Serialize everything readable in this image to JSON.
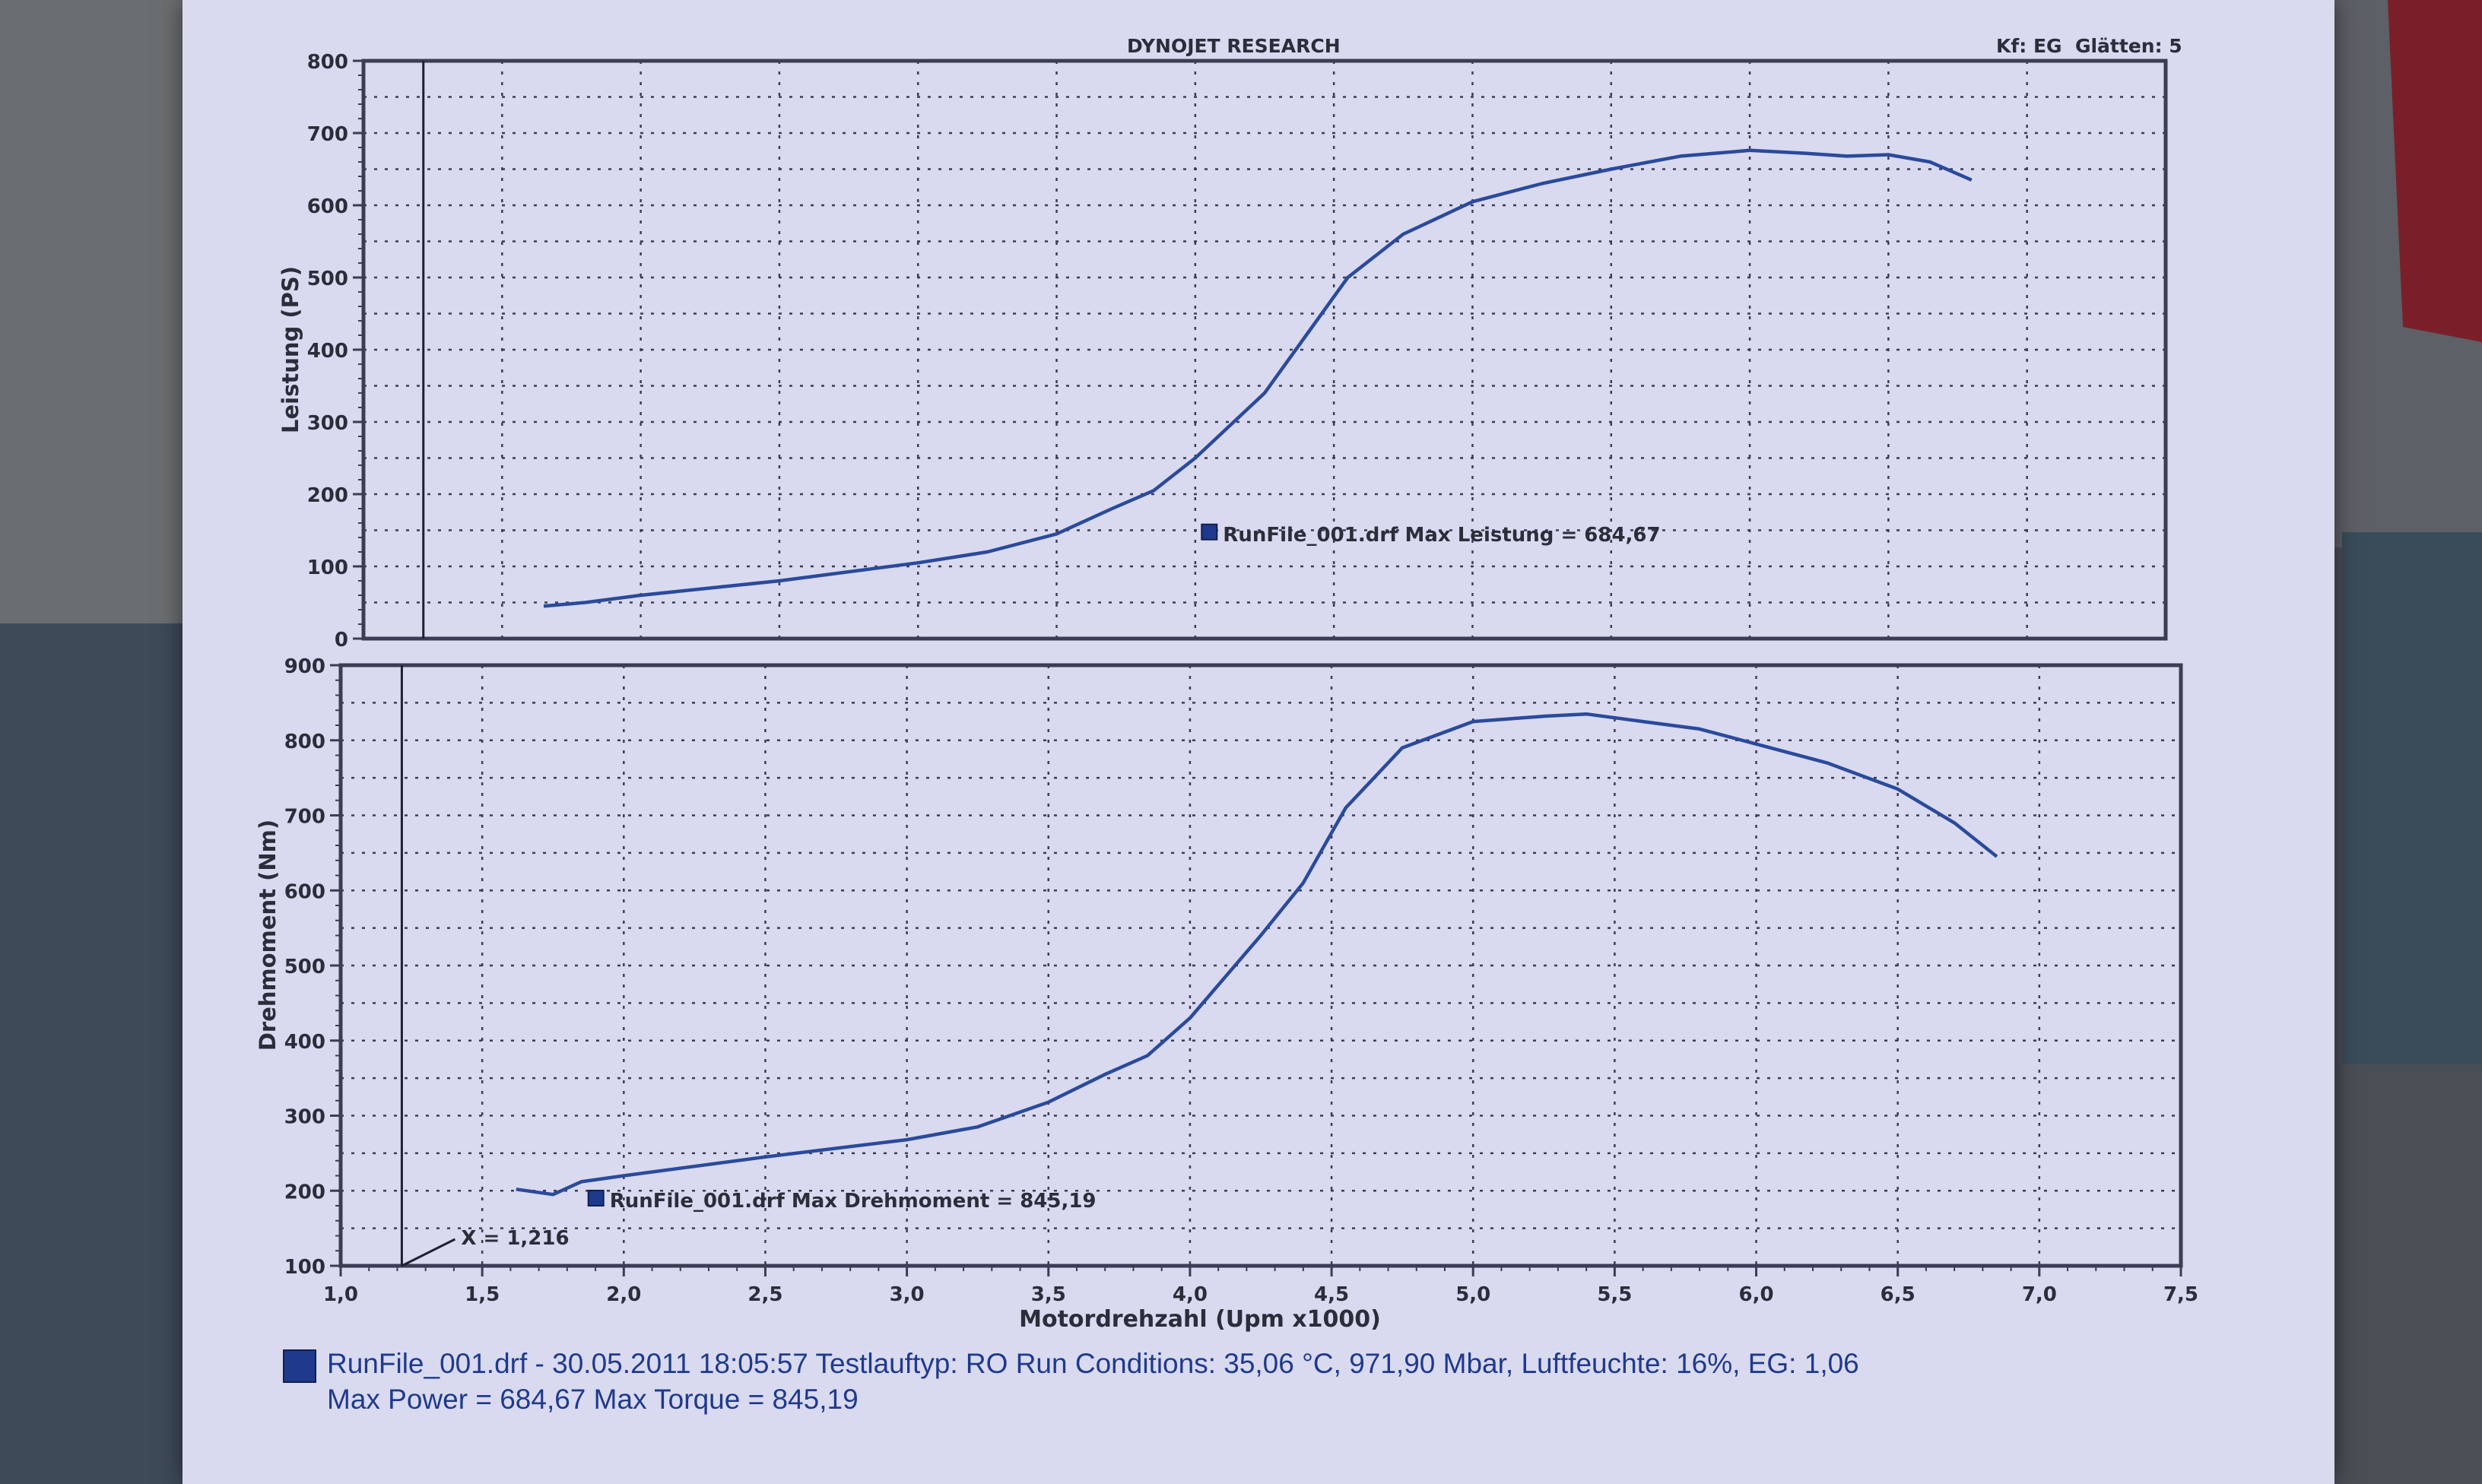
{
  "header": {
    "title": "DYNOJET RESEARCH",
    "right": "Kf: EG  Glätten: 5"
  },
  "colors": {
    "curve": "#2b4a9c",
    "grid": "#3a3d55",
    "text": "#2b2d3a",
    "legend": "#1f3a8c"
  },
  "chart_data": [
    {
      "type": "line",
      "ylabel": "Leistung (PS)",
      "ylim": [
        0,
        800
      ],
      "yticks": [
        "0",
        "100",
        "200",
        "300",
        "400",
        "500",
        "600",
        "700",
        "800"
      ],
      "xlim": [
        1.0,
        7.5
      ],
      "grid": true,
      "series": [
        {
          "label": "RunFile_001.drf Max Leistung = 684,67",
          "points": [
            [
              1.65,
              45
            ],
            [
              1.8,
              50
            ],
            [
              2.0,
              60
            ],
            [
              2.5,
              80
            ],
            [
              3.0,
              105
            ],
            [
              3.25,
              120
            ],
            [
              3.5,
              145
            ],
            [
              3.7,
              180
            ],
            [
              3.85,
              205
            ],
            [
              4.0,
              250
            ],
            [
              4.25,
              340
            ],
            [
              4.4,
              420
            ],
            [
              4.55,
              500
            ],
            [
              4.75,
              560
            ],
            [
              5.0,
              605
            ],
            [
              5.25,
              630
            ],
            [
              5.5,
              650
            ],
            [
              5.75,
              668
            ],
            [
              6.0,
              676
            ],
            [
              6.2,
              672
            ],
            [
              6.35,
              668
            ],
            [
              6.5,
              670
            ],
            [
              6.65,
              660
            ],
            [
              6.8,
              635
            ]
          ]
        }
      ],
      "cursor_x": 1.216
    },
    {
      "type": "line",
      "ylabel": "Drehmoment (Nm)",
      "ylim": [
        100,
        900
      ],
      "yticks": [
        "100",
        "200",
        "300",
        "400",
        "500",
        "600",
        "700",
        "800",
        "900"
      ],
      "xlim": [
        1.0,
        7.5
      ],
      "xlabel": "Motordrehzahl (Upm x1000)",
      "xticks": [
        "1,0",
        "1,5",
        "2,0",
        "2,5",
        "3,0",
        "3,5",
        "4,0",
        "4,5",
        "5,0",
        "5,5",
        "6,0",
        "6,5",
        "7,0",
        "7,5"
      ],
      "grid": true,
      "series": [
        {
          "label": "RunFile_001.drf Max Drehmoment = 845,19",
          "points": [
            [
              1.62,
              202
            ],
            [
              1.75,
              195
            ],
            [
              1.85,
              212
            ],
            [
              2.0,
              220
            ],
            [
              2.5,
              245
            ],
            [
              3.0,
              268
            ],
            [
              3.25,
              285
            ],
            [
              3.5,
              318
            ],
            [
              3.7,
              355
            ],
            [
              3.85,
              380
            ],
            [
              4.0,
              430
            ],
            [
              4.25,
              540
            ],
            [
              4.4,
              610
            ],
            [
              4.55,
              710
            ],
            [
              4.75,
              790
            ],
            [
              5.0,
              825
            ],
            [
              5.25,
              832
            ],
            [
              5.4,
              835
            ],
            [
              5.6,
              825
            ],
            [
              5.8,
              815
            ],
            [
              6.0,
              795
            ],
            [
              6.25,
              770
            ],
            [
              6.5,
              735
            ],
            [
              6.7,
              690
            ],
            [
              6.85,
              645
            ]
          ]
        }
      ],
      "cursor_label": "X = 1,216",
      "cursor_x": 1.216
    }
  ],
  "footer": {
    "line1": "RunFile_001.drf - 30.05.2011 18:05:57  Testlauftyp: RO  Run Conditions: 35,06 °C, 971,90 Mbar,  Luftfeuchte: 16%, EG: 1,06",
    "line2": "Max Power = 684,67  Max Torque = 845,19"
  }
}
